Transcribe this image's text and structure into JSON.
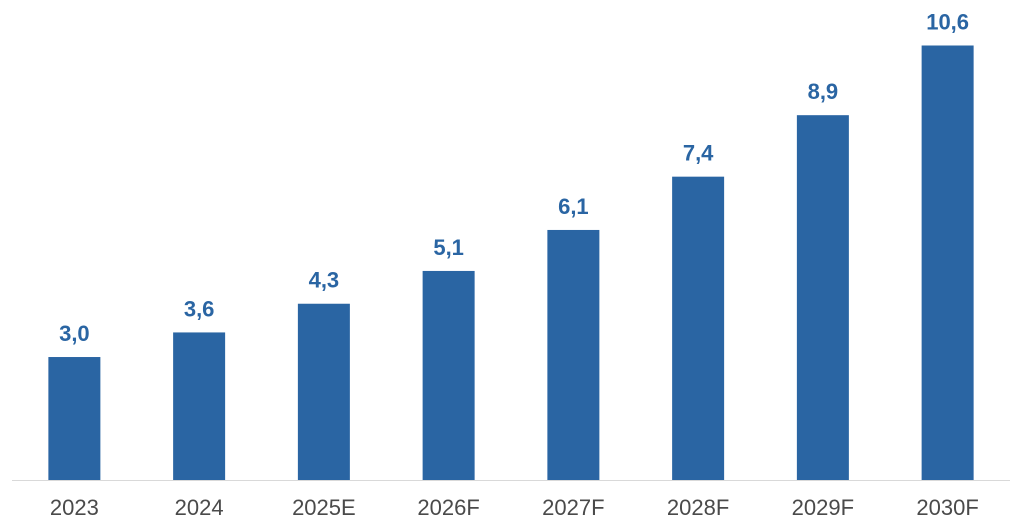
{
  "chart_data": {
    "type": "bar",
    "categories": [
      "2023",
      "2024",
      "2025E",
      "2026F",
      "2027F",
      "2028F",
      "2029F",
      "2030F"
    ],
    "values": [
      3.0,
      3.6,
      4.3,
      5.1,
      6.1,
      7.4,
      8.9,
      10.6
    ],
    "data_labels": [
      "3,0",
      "3,6",
      "4,3",
      "5,1",
      "6,1",
      "7,4",
      "8,9",
      "10,6"
    ],
    "title": "",
    "xlabel": "",
    "ylabel": "",
    "ylim": [
      0,
      11.1
    ],
    "grid": false,
    "y_axis_visible": false,
    "colors": {
      "bar": "#2a65a3",
      "value_label": "#2a65a3",
      "tick_label": "#4a4a4a",
      "baseline": "#d9d9d9"
    }
  }
}
